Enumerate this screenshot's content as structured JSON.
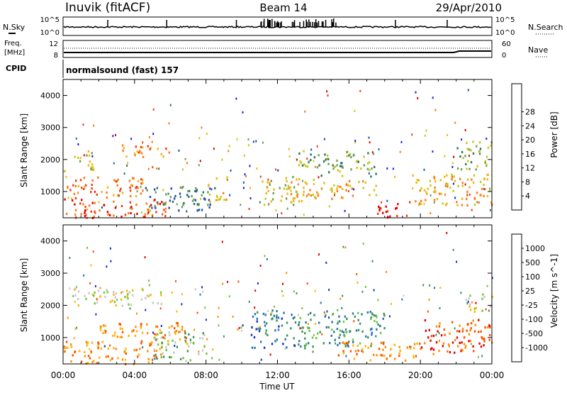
{
  "header": {
    "station": "Inuvik (fitACF)",
    "beam": "Beam 14",
    "date": "29/Apr/2010"
  },
  "summary": {
    "nsky_label": "N.Sky",
    "nsky_ticks": [
      "10^5",
      "10^0"
    ],
    "nsearch_label": "N.Search",
    "nsearch_ticks": [
      "10^5",
      "10^0"
    ],
    "freq_label_1": "Freq.",
    "freq_label_2": "[MHz]",
    "freq_ticks": [
      "12",
      "8"
    ],
    "nave_label": "Nave",
    "nave_ticks": [
      "60",
      "0"
    ],
    "cpid_label": "CPID",
    "cpid_value": "normalsound (fast) 157"
  },
  "chart_data": [
    {
      "type": "heatmap",
      "name": "power",
      "ylabel": "Slant Range [km]",
      "xlabel": "",
      "yticks": [
        "1000",
        "2000",
        "3000",
        "4000"
      ],
      "ylim": [
        180,
        4500
      ],
      "xlim_hours": [
        0,
        24
      ],
      "colorbar": {
        "label": "Power [dB]",
        "ticks": [
          "4",
          "8",
          "12",
          "16",
          "20",
          "24",
          "28"
        ],
        "colors": [
          "#1f1fe6",
          "#2050b4",
          "#2d7860",
          "#6ea050",
          "#c8c81e",
          "#f0b414",
          "#ff7814",
          "#f03c14",
          "#e60000"
        ]
      },
      "regions": [
        {
          "t0": 0.0,
          "t1": 5.8,
          "r0": 200,
          "r1": 800,
          "level": 7
        },
        {
          "t0": 0.2,
          "t1": 4.5,
          "r0": 800,
          "r1": 1500,
          "level": 6
        },
        {
          "t0": 0.3,
          "t1": 1.8,
          "r0": 1700,
          "r1": 2300,
          "level": 4
        },
        {
          "t0": 3.0,
          "t1": 6.0,
          "r0": 2100,
          "r1": 2500,
          "level": 6
        },
        {
          "t0": 4.5,
          "t1": 8.5,
          "r0": 400,
          "r1": 1200,
          "level": 2
        },
        {
          "t0": 8.0,
          "t1": 9.2,
          "r0": 700,
          "r1": 1500,
          "level": 5
        },
        {
          "t0": 11.0,
          "t1": 13.5,
          "r0": 600,
          "r1": 1500,
          "level": 4
        },
        {
          "t0": 12.5,
          "t1": 17.5,
          "r0": 800,
          "r1": 1400,
          "level": 5
        },
        {
          "t0": 13.0,
          "t1": 17.5,
          "r0": 1500,
          "r1": 2300,
          "level": 3
        },
        {
          "t0": 17.5,
          "t1": 19.5,
          "r0": 200,
          "r1": 700,
          "level": 8
        },
        {
          "t0": 19.5,
          "t1": 24.0,
          "r0": 600,
          "r1": 1600,
          "level": 5
        },
        {
          "t0": 22.0,
          "t1": 24.0,
          "r0": 1700,
          "r1": 2600,
          "level": 3
        }
      ]
    },
    {
      "type": "heatmap",
      "name": "velocity",
      "ylabel": "Slant Range [km]",
      "xlabel": "Time UT",
      "xticks": [
        "00:00",
        "04:00",
        "08:00",
        "12:00",
        "16:00",
        "20:00",
        "00:00"
      ],
      "yticks": [
        "1000",
        "2000",
        "3000",
        "4000"
      ],
      "ylim": [
        180,
        4500
      ],
      "xlim_hours": [
        0,
        24
      ],
      "colorbar": {
        "label": "Velocity [m s^-1]",
        "ticks": [
          "1000",
          "500",
          "100",
          "25",
          "-25",
          "-100",
          "-500",
          "-1000"
        ],
        "colors": [
          "#1432c8",
          "#2878aa",
          "#3c9650",
          "#6ec83c",
          "#c8c8c8",
          "#ffb400",
          "#ff8c00",
          "#ff5000",
          "#e60000"
        ]
      },
      "regions": [
        {
          "t0": 0.0,
          "t1": 5.5,
          "r0": 200,
          "r1": 900,
          "level": 6
        },
        {
          "t0": 2.0,
          "t1": 7.0,
          "r0": 800,
          "r1": 1500,
          "level": 6
        },
        {
          "t0": 0.5,
          "t1": 5.5,
          "r0": 2000,
          "r1": 2600,
          "level": 4
        },
        {
          "t0": 5.0,
          "t1": 8.0,
          "r0": 300,
          "r1": 1200,
          "level": 3
        },
        {
          "t0": 10.5,
          "t1": 13.0,
          "r0": 700,
          "r1": 1900,
          "level": 1
        },
        {
          "t0": 13.0,
          "t1": 18.0,
          "r0": 700,
          "r1": 1900,
          "level": 2
        },
        {
          "t0": 15.0,
          "t1": 20.0,
          "r0": 300,
          "r1": 900,
          "level": 6
        },
        {
          "t0": 20.0,
          "t1": 24.0,
          "r0": 500,
          "r1": 1600,
          "level": 7
        },
        {
          "t0": 22.5,
          "t1": 24.0,
          "r0": 1800,
          "r1": 2400,
          "level": 4
        }
      ]
    }
  ]
}
